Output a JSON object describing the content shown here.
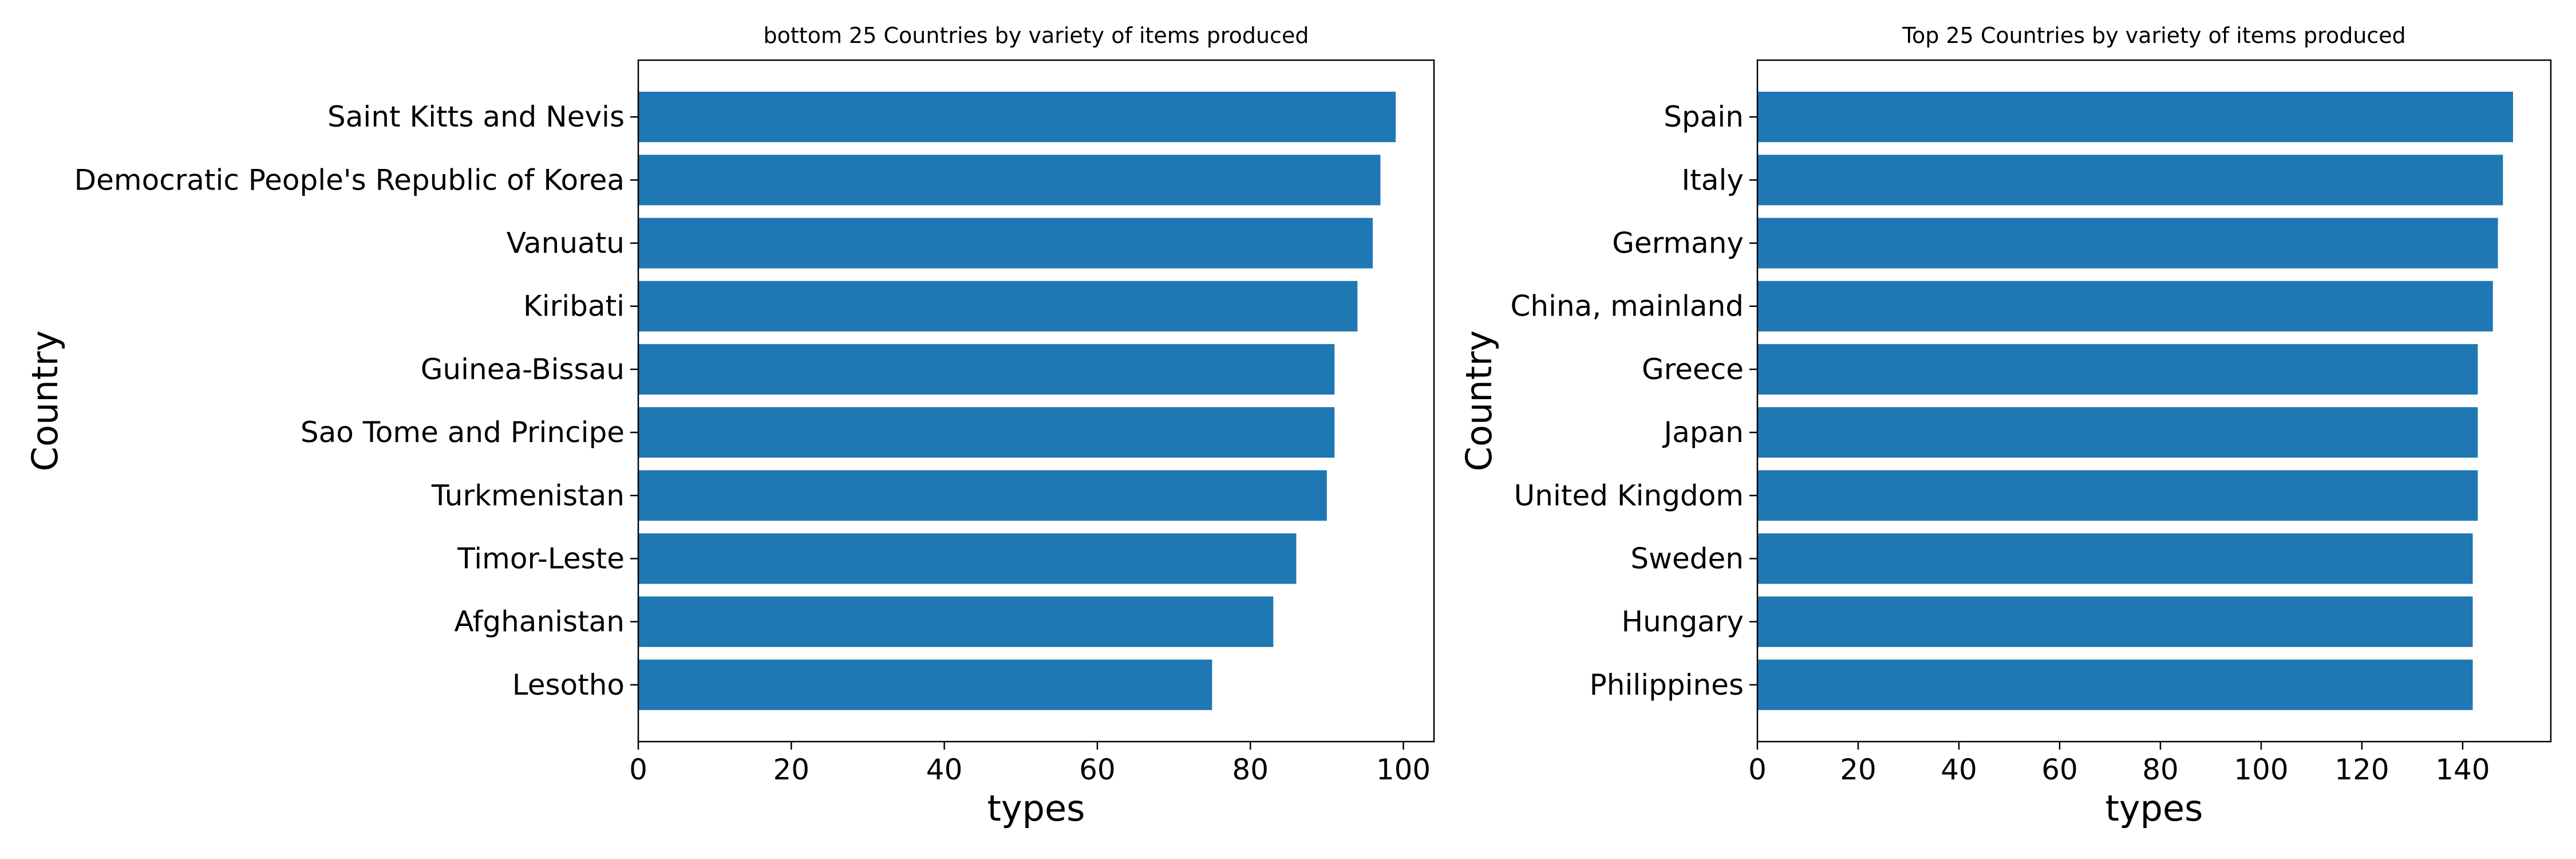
{
  "chart_data": [
    {
      "type": "bar",
      "orientation": "horizontal",
      "title": "bottom 25 Countries by variety of items produced",
      "xlabel": "types",
      "ylabel": "Country",
      "categories": [
        "Saint Kitts and Nevis",
        "Democratic People's Republic of Korea",
        "Vanuatu",
        "Kiribati",
        "Guinea-Bissau",
        "Sao Tome and Principe",
        "Turkmenistan",
        "Timor-Leste",
        "Afghanistan",
        "Lesotho"
      ],
      "values": [
        99,
        97,
        96,
        94,
        91,
        91,
        90,
        86,
        83,
        75
      ],
      "xlim": [
        0,
        104
      ],
      "xticks": [
        0,
        20,
        40,
        60,
        80,
        100
      ],
      "grid": false,
      "color": "#1f77b4"
    },
    {
      "type": "bar",
      "orientation": "horizontal",
      "title": "Top 25 Countries by variety of items produced",
      "xlabel": "types",
      "ylabel": "Country",
      "categories": [
        "Spain",
        "Italy",
        "Germany",
        "China, mainland",
        "Greece",
        "Japan",
        "United Kingdom",
        "Sweden",
        "Hungary",
        "Philippines"
      ],
      "values": [
        150,
        148,
        147,
        146,
        143,
        143,
        143,
        142,
        142,
        142
      ],
      "xlim": [
        0,
        157.5
      ],
      "xticks": [
        0,
        20,
        40,
        60,
        80,
        100,
        120,
        140
      ],
      "grid": false,
      "color": "#1f77b4"
    }
  ]
}
